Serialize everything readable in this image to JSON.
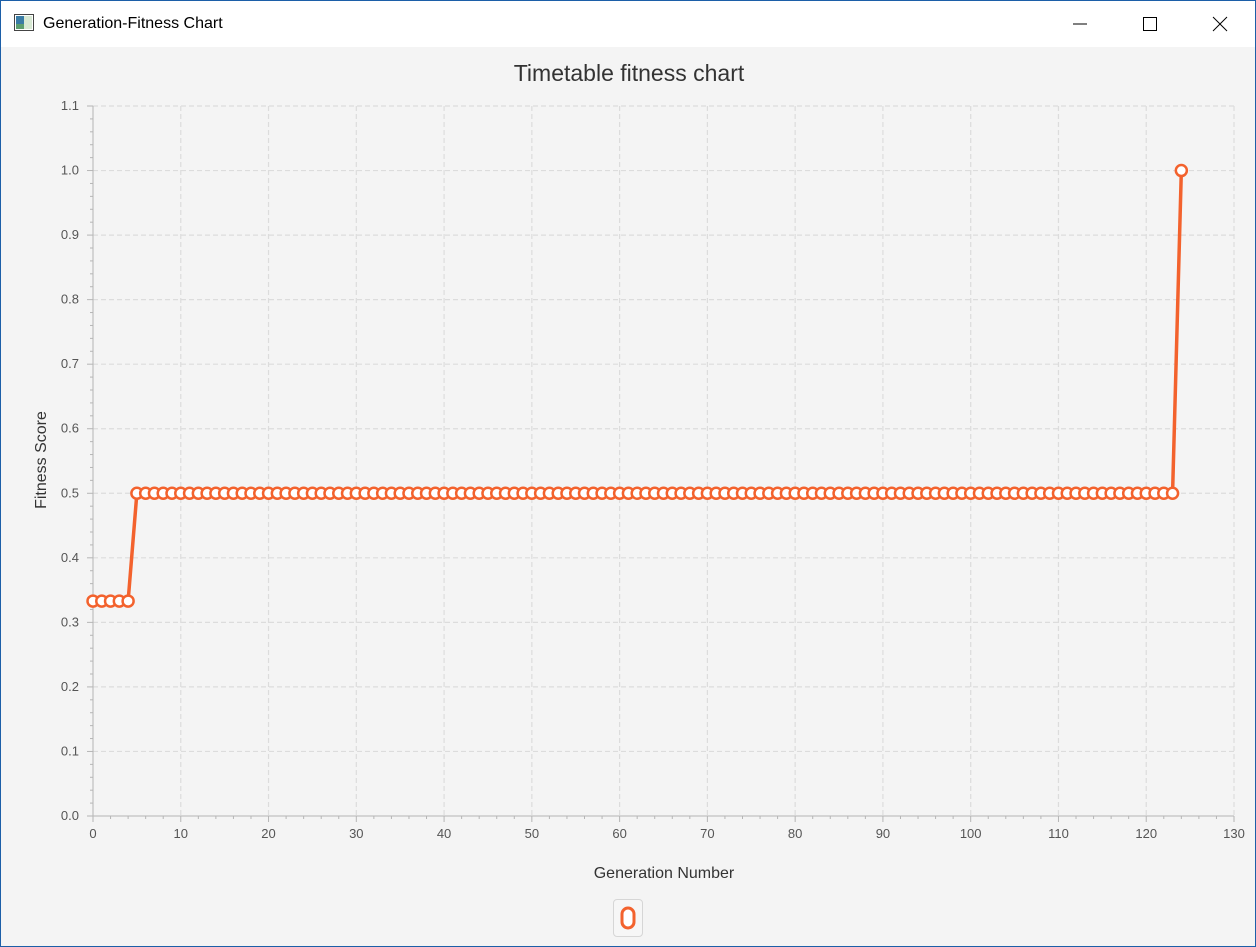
{
  "window": {
    "title": "Generation-Fitness Chart",
    "controls": [
      "minimize",
      "maximize",
      "close"
    ]
  },
  "colors": {
    "series": "#f3622d",
    "grid": "#dcdcdc",
    "axis": "#b5b5b5",
    "background": "#f4f4f4",
    "window_border": "#1c5fa8"
  },
  "chart_data": {
    "type": "line",
    "title": "Timetable fitness chart",
    "xlabel": "Generation Number",
    "ylabel": "Fitness Score",
    "xlim": [
      0,
      130
    ],
    "ylim": [
      0,
      1.1
    ],
    "x_ticks": [
      "0",
      "10",
      "20",
      "30",
      "40",
      "50",
      "60",
      "70",
      "80",
      "90",
      "100",
      "110",
      "120",
      "130"
    ],
    "y_ticks": [
      "0.0",
      "0.1",
      "0.2",
      "0.3",
      "0.4",
      "0.5",
      "0.6",
      "0.7",
      "0.8",
      "0.9",
      "1.0",
      "1.1"
    ],
    "grid": true,
    "legend_placement": "bottom",
    "series": [
      {
        "x": [
          0,
          1,
          2,
          3,
          4,
          5,
          6,
          7,
          8,
          9,
          10,
          11,
          12,
          13,
          14,
          15,
          16,
          17,
          18,
          19,
          20,
          21,
          22,
          23,
          24,
          25,
          26,
          27,
          28,
          29,
          30,
          31,
          32,
          33,
          34,
          35,
          36,
          37,
          38,
          39,
          40,
          41,
          42,
          43,
          44,
          45,
          46,
          47,
          48,
          49,
          50,
          51,
          52,
          53,
          54,
          55,
          56,
          57,
          58,
          59,
          60,
          61,
          62,
          63,
          64,
          65,
          66,
          67,
          68,
          69,
          70,
          71,
          72,
          73,
          74,
          75,
          76,
          77,
          78,
          79,
          80,
          81,
          82,
          83,
          84,
          85,
          86,
          87,
          88,
          89,
          90,
          91,
          92,
          93,
          94,
          95,
          96,
          97,
          98,
          99,
          100,
          101,
          102,
          103,
          104,
          105,
          106,
          107,
          108,
          109,
          110,
          111,
          112,
          113,
          114,
          115,
          116,
          117,
          118,
          119,
          120,
          121,
          122,
          123,
          124
        ],
        "values": [
          0.333,
          0.333,
          0.333,
          0.333,
          0.333,
          0.5,
          0.5,
          0.5,
          0.5,
          0.5,
          0.5,
          0.5,
          0.5,
          0.5,
          0.5,
          0.5,
          0.5,
          0.5,
          0.5,
          0.5,
          0.5,
          0.5,
          0.5,
          0.5,
          0.5,
          0.5,
          0.5,
          0.5,
          0.5,
          0.5,
          0.5,
          0.5,
          0.5,
          0.5,
          0.5,
          0.5,
          0.5,
          0.5,
          0.5,
          0.5,
          0.5,
          0.5,
          0.5,
          0.5,
          0.5,
          0.5,
          0.5,
          0.5,
          0.5,
          0.5,
          0.5,
          0.5,
          0.5,
          0.5,
          0.5,
          0.5,
          0.5,
          0.5,
          0.5,
          0.5,
          0.5,
          0.5,
          0.5,
          0.5,
          0.5,
          0.5,
          0.5,
          0.5,
          0.5,
          0.5,
          0.5,
          0.5,
          0.5,
          0.5,
          0.5,
          0.5,
          0.5,
          0.5,
          0.5,
          0.5,
          0.5,
          0.5,
          0.5,
          0.5,
          0.5,
          0.5,
          0.5,
          0.5,
          0.5,
          0.5,
          0.5,
          0.5,
          0.5,
          0.5,
          0.5,
          0.5,
          0.5,
          0.5,
          0.5,
          0.5,
          0.5,
          0.5,
          0.5,
          0.5,
          0.5,
          0.5,
          0.5,
          0.5,
          0.5,
          0.5,
          0.5,
          0.5,
          0.5,
          0.5,
          0.5,
          0.5,
          0.5,
          0.5,
          0.5,
          0.5,
          0.5,
          0.5,
          0.5,
          0.5,
          1.0
        ]
      }
    ]
  }
}
